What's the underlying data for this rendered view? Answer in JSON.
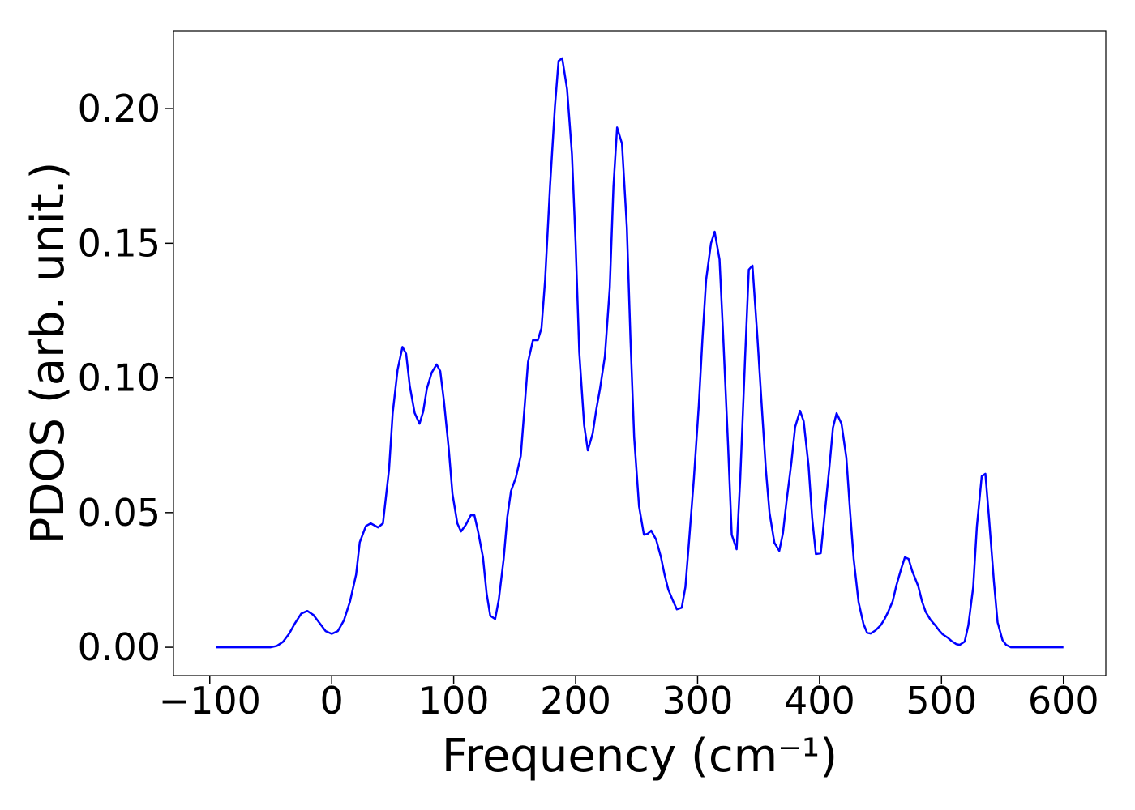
{
  "chart_data": {
    "type": "line",
    "xlabel": "Frequency (cm⁻¹)",
    "ylabel": "PDOS (arb. unit.)",
    "color": "#0000ff",
    "x": [
      -95,
      -50,
      -45,
      -40,
      -35,
      -30,
      -25,
      -20,
      -15,
      -10,
      -5,
      0,
      5,
      10,
      15,
      20,
      23,
      28,
      32,
      38,
      42,
      44,
      47,
      50,
      54,
      58,
      61,
      64,
      68,
      72,
      75,
      78,
      82,
      86,
      89,
      92,
      96,
      99,
      103,
      106,
      110,
      114,
      117,
      120,
      124,
      127,
      130,
      134,
      137,
      141,
      144,
      147,
      151,
      155,
      158,
      161,
      165,
      169,
      172,
      175,
      179,
      183,
      186,
      189,
      193,
      197,
      200,
      203,
      207,
      210,
      214,
      217,
      220,
      224,
      228,
      231,
      234,
      238,
      242,
      245,
      248,
      252,
      256,
      259,
      262,
      266,
      270,
      273,
      276,
      280,
      283,
      287,
      290,
      293,
      297,
      301,
      304,
      307,
      311,
      314,
      318,
      321,
      325,
      328,
      332,
      335,
      339,
      342,
      345,
      349,
      353,
      356,
      359,
      363,
      367,
      370,
      373,
      377,
      380,
      384,
      387,
      391,
      394,
      397,
      401,
      404,
      408,
      411,
      414,
      418,
      422,
      425,
      428,
      432,
      436,
      439,
      442,
      446,
      450,
      453,
      456,
      460,
      463,
      467,
      470,
      473,
      476,
      481,
      484,
      487,
      491,
      495,
      498,
      501,
      505,
      508,
      512,
      515,
      519,
      522,
      526,
      529,
      533,
      536,
      539,
      543,
      546,
      550,
      553,
      557,
      600
    ],
    "values": [
      0,
      0,
      0.0005,
      0.002,
      0.005,
      0.009,
      0.0125,
      0.0135,
      0.012,
      0.009,
      0.006,
      0.005,
      0.006,
      0.01,
      0.017,
      0.027,
      0.039,
      0.045,
      0.046,
      0.0445,
      0.046,
      0.054,
      0.066,
      0.087,
      0.103,
      0.1115,
      0.109,
      0.097,
      0.087,
      0.083,
      0.0875,
      0.096,
      0.102,
      0.105,
      0.1025,
      0.0915,
      0.0735,
      0.057,
      0.046,
      0.043,
      0.0455,
      0.049,
      0.049,
      0.043,
      0.0335,
      0.02,
      0.0117,
      0.0105,
      0.0177,
      0.0328,
      0.0484,
      0.058,
      0.063,
      0.071,
      0.0885,
      0.106,
      0.114,
      0.114,
      0.1185,
      0.1365,
      0.171,
      0.2006,
      0.2177,
      0.2187,
      0.2072,
      0.183,
      0.15,
      0.1095,
      0.0824,
      0.0731,
      0.0794,
      0.0884,
      0.096,
      0.108,
      0.1335,
      0.171,
      0.193,
      0.187,
      0.156,
      0.114,
      0.078,
      0.0523,
      0.0418,
      0.0421,
      0.0433,
      0.04,
      0.0334,
      0.0268,
      0.0214,
      0.0171,
      0.0141,
      0.0147,
      0.0223,
      0.0394,
      0.0629,
      0.0899,
      0.1146,
      0.1365,
      0.15,
      0.1543,
      0.144,
      0.1155,
      0.0749,
      0.0418,
      0.0364,
      0.0629,
      0.108,
      0.1402,
      0.1417,
      0.1155,
      0.0869,
      0.0659,
      0.0499,
      0.0388,
      0.0358,
      0.0424,
      0.0544,
      0.0689,
      0.0818,
      0.0878,
      0.0839,
      0.0674,
      0.0478,
      0.0346,
      0.0349,
      0.0484,
      0.0665,
      0.0815,
      0.0869,
      0.083,
      0.0704,
      0.0508,
      0.0328,
      0.0168,
      0.0087,
      0.0054,
      0.0051,
      0.0063,
      0.0081,
      0.0102,
      0.0129,
      0.0171,
      0.0229,
      0.0292,
      0.0334,
      0.0328,
      0.0283,
      0.0226,
      0.0171,
      0.0132,
      0.0102,
      0.0081,
      0.0063,
      0.0048,
      0.0036,
      0.0024,
      0.0012,
      0.0009,
      0.0021,
      0.0081,
      0.0223,
      0.0448,
      0.0635,
      0.0644,
      0.0478,
      0.0244,
      0.0093,
      0.0027,
      0.0009,
      0,
      0
    ],
    "xlim": [
      -129.75,
      634.75
    ],
    "xticks": [
      {
        "value": -100,
        "label": "−100"
      },
      0,
      100,
      200,
      300,
      400,
      500,
      600
    ],
    "ylim": [
      -0.0105,
      0.2289
    ],
    "yticks": [
      {
        "value": 0,
        "label": "0.00"
      },
      {
        "value": 0.05,
        "label": "0.05"
      },
      {
        "value": 0.1,
        "label": "0.10"
      },
      {
        "value": 0.15,
        "label": "0.15"
      },
      {
        "value": 0.2,
        "label": "0.20"
      }
    ],
    "grid": false
  }
}
